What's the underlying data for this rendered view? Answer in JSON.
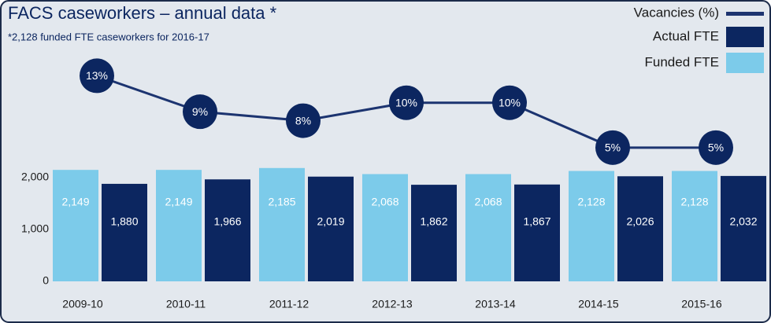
{
  "chart_data": {
    "type": "bar",
    "title": "FACS caseworkers – annual data *",
    "subtitle": "*2,128 funded FTE caseworkers for 2016-17",
    "categories": [
      "2009-10",
      "2010-11",
      "2011-12",
      "2012-13",
      "2013-14",
      "2014-15",
      "2015-16"
    ],
    "series": [
      {
        "name": "Funded FTE",
        "color": "#7ccbea",
        "values": [
          2149,
          2149,
          2185,
          2068,
          2068,
          2128,
          2128
        ],
        "value_labels": [
          "2,149",
          "2,149",
          "2,185",
          "2,068",
          "2,068",
          "2,128",
          "2,128"
        ]
      },
      {
        "name": "Actual FTE",
        "color": "#0c2660",
        "values": [
          1880,
          1966,
          2019,
          1862,
          1867,
          2026,
          2032
        ],
        "value_labels": [
          "1,880",
          "1,966",
          "2,019",
          "1,862",
          "1,867",
          "2,026",
          "2,032"
        ]
      },
      {
        "name": "Vacancies (%)",
        "color": "#1c3470",
        "type": "line",
        "axis": "y2",
        "values": [
          13,
          9,
          8,
          10,
          10,
          5,
          5
        ],
        "value_labels": [
          "13%",
          "9%",
          "8%",
          "10%",
          "10%",
          "5%",
          "5%"
        ]
      }
    ],
    "ylim": [
      0,
      2000
    ],
    "yticks": [
      0,
      {
        "value": 1000,
        "label": "1,000"
      },
      {
        "value": 2000,
        "label": "2,000"
      }
    ],
    "y2lim": [
      0,
      14
    ],
    "legend": "top-right"
  }
}
